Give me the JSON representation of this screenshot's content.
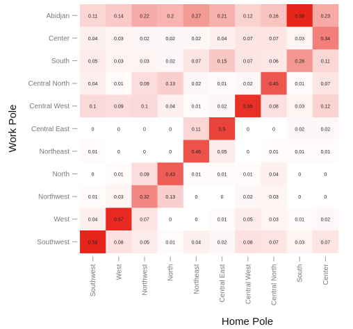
{
  "chart_data": {
    "type": "heatmap",
    "xlabel": "Home Pole",
    "ylabel": "Work Pole",
    "x_categories": [
      "Southwest",
      "West",
      "Northwest",
      "North",
      "Northeast",
      "Central East",
      "Central West",
      "Central North",
      "South",
      "Center"
    ],
    "y_categories": [
      "Abidjan",
      "Center",
      "South",
      "Central North",
      "Central West",
      "Central East",
      "Northeast",
      "North",
      "Northwest",
      "West",
      "Southwest"
    ],
    "values": [
      [
        0.11,
        0.14,
        0.22,
        0.2,
        0.27,
        0.21,
        0.12,
        0.16,
        0.58,
        0.23
      ],
      [
        0.04,
        0.03,
        0.02,
        0.02,
        0.02,
        0.04,
        0.07,
        0.07,
        0.03,
        0.34
      ],
      [
        0.05,
        0.03,
        0.03,
        0.02,
        0.07,
        0.15,
        0.07,
        0.06,
        0.28,
        0.11
      ],
      [
        0.04,
        0.01,
        0.09,
        0.13,
        0.02,
        0.01,
        0.02,
        0.45,
        0.01,
        0.07
      ],
      [
        0.1,
        0.09,
        0.1,
        0.04,
        0.01,
        0.02,
        0.55,
        0.08,
        0.03,
        0.12
      ],
      [
        0,
        0,
        0,
        0,
        0.11,
        0.5,
        0,
        0,
        0.02,
        0.02
      ],
      [
        0.01,
        0,
        0,
        0,
        0.46,
        0.05,
        0,
        0.01,
        0.01,
        0.01
      ],
      [
        0,
        0.01,
        0.09,
        0.43,
        0.01,
        0.01,
        0.01,
        0.04,
        0,
        0
      ],
      [
        0.01,
        0.03,
        0.32,
        0.13,
        0,
        0,
        0.02,
        0.03,
        0,
        0
      ],
      [
        0.04,
        0.57,
        0.07,
        0,
        0,
        0.01,
        0.05,
        0.03,
        0.01,
        0.02
      ],
      [
        0.58,
        0.08,
        0.05,
        0.01,
        0.04,
        0.02,
        0.08,
        0.07,
        0.03,
        0.07
      ]
    ],
    "value_range": [
      0,
      0.58
    ],
    "colors": {
      "low": "#ffffff",
      "high": "#e8251b",
      "label_text": "#222222",
      "axis_text": "#7a7a7a",
      "title_text": "#111111"
    },
    "grid": false,
    "legend": "none"
  }
}
